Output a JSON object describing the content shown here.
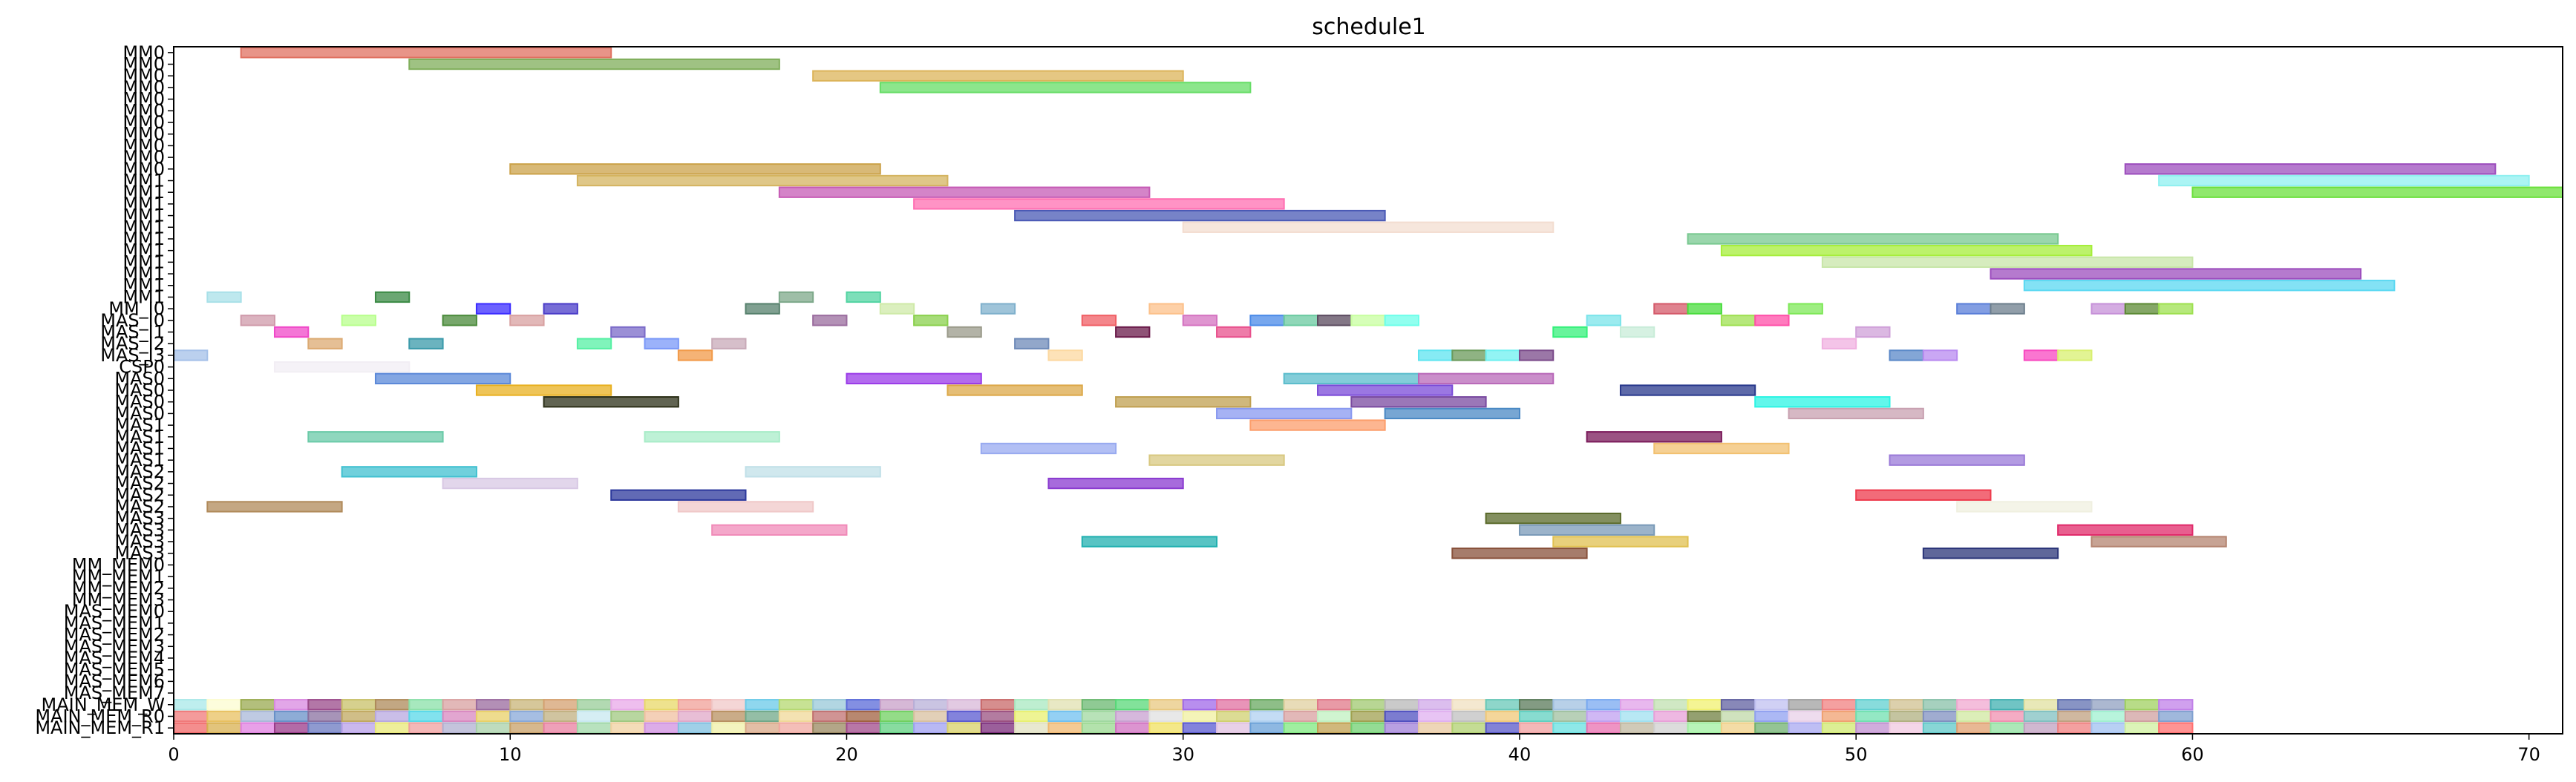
{
  "chart_data": {
    "type": "gantt",
    "title": "schedule1",
    "xlabel": "",
    "ylabel": "",
    "xlim": [
      0,
      71
    ],
    "x_ticks": [
      0,
      10,
      20,
      30,
      40,
      50,
      60,
      70
    ],
    "grid": false,
    "lanes": [
      "MM0",
      "MM0",
      "MM0",
      "MM0",
      "MM0",
      "MM0",
      "MM0",
      "MM0",
      "MM0",
      "MM0",
      "MM0",
      "MM1",
      "MM1",
      "MM1",
      "MM1",
      "MM1",
      "MM1",
      "MM1",
      "MM1",
      "MM1",
      "MM1",
      "MM1",
      "MM_I0",
      "MAS_I0",
      "MAS_I1",
      "MAS_I2",
      "MAS_I3",
      "CSP0",
      "MAS0",
      "MAS0",
      "MAS0",
      "MAS0",
      "MAS1",
      "MAS1",
      "MAS1",
      "MAS1",
      "MAS2",
      "MAS2",
      "MAS2",
      "MAS2",
      "MAS3",
      "MAS3",
      "MAS3",
      "MAS3",
      "MM_MEM0",
      "MM_MEM1",
      "MM_MEM2",
      "MM_MEM3",
      "MAS_MEM0",
      "MAS_MEM1",
      "MAS_MEM2",
      "MAS_MEM3",
      "MAS_MEM4",
      "MAS_MEM5",
      "MAS_MEM6",
      "MAS_MEM7",
      "MAIN_MEM_W",
      "MAIN_MEM_R0",
      "MAIN_MEM_R1"
    ],
    "tasks": [
      {
        "lane": 0,
        "start": 2,
        "end": 13,
        "color": "#e07060"
      },
      {
        "lane": 1,
        "start": 7,
        "end": 18,
        "color": "#7fae5a"
      },
      {
        "lane": 2,
        "start": 19,
        "end": 30,
        "color": "#dcb45a"
      },
      {
        "lane": 3,
        "start": 21,
        "end": 32,
        "color": "#66dd66"
      },
      {
        "lane": 10,
        "start": 58,
        "end": 69,
        "color": "#9c4dbd"
      },
      {
        "lane": 10,
        "start": 10,
        "end": 21,
        "color": "#cba24a"
      },
      {
        "lane": 11,
        "start": 59,
        "end": 70,
        "color": "#8ff0f0"
      },
      {
        "lane": 11,
        "start": 12,
        "end": 23,
        "color": "#d4b460"
      },
      {
        "lane": 12,
        "start": 60,
        "end": 71,
        "color": "#6be03c"
      },
      {
        "lane": 12,
        "start": 18,
        "end": 29,
        "color": "#c65bb5"
      },
      {
        "lane": 13,
        "start": 22,
        "end": 33,
        "color": "#ff6fb2"
      },
      {
        "lane": 14,
        "start": 25,
        "end": 36,
        "color": "#4a59b5"
      },
      {
        "lane": 15,
        "start": 30,
        "end": 41,
        "color": "#f3ddd0"
      },
      {
        "lane": 16,
        "start": 45,
        "end": 56,
        "color": "#78c890"
      },
      {
        "lane": 17,
        "start": 46,
        "end": 57,
        "color": "#a6ee3a"
      },
      {
        "lane": 18,
        "start": 49,
        "end": 60,
        "color": "#c8e6a8"
      },
      {
        "lane": 19,
        "start": 54,
        "end": 65,
        "color": "#9c4dbd"
      },
      {
        "lane": 20,
        "start": 55,
        "end": 66,
        "color": "#5ad8f2"
      },
      {
        "lane": 21,
        "start": 1,
        "end": 2,
        "color": "#a8e0e8"
      },
      {
        "lane": 21,
        "start": 6,
        "end": 7,
        "color": "#3a8a44"
      },
      {
        "lane": 21,
        "start": 18,
        "end": 19,
        "color": "#7da88a"
      },
      {
        "lane": 21,
        "start": 20,
        "end": 21,
        "color": "#52d4a2"
      },
      {
        "lane": 22,
        "start": 9,
        "end": 10,
        "color": "#3b2cff"
      },
      {
        "lane": 22,
        "start": 11,
        "end": 12,
        "color": "#4a3cc8"
      },
      {
        "lane": 22,
        "start": 17,
        "end": 18,
        "color": "#56806c"
      },
      {
        "lane": 22,
        "start": 21,
        "end": 22,
        "color": "#cfeaa8"
      },
      {
        "lane": 22,
        "start": 24,
        "end": 25,
        "color": "#7fb0cc"
      },
      {
        "lane": 22,
        "start": 29,
        "end": 30,
        "color": "#fcc08a"
      },
      {
        "lane": 22,
        "start": 44,
        "end": 45,
        "color": "#d45a6a"
      },
      {
        "lane": 22,
        "start": 45,
        "end": 46,
        "color": "#48dc3c"
      },
      {
        "lane": 22,
        "start": 48,
        "end": 49,
        "color": "#7ee858"
      },
      {
        "lane": 22,
        "start": 53,
        "end": 54,
        "color": "#5a7ed8"
      },
      {
        "lane": 22,
        "start": 54,
        "end": 55,
        "color": "#6c7e8c"
      },
      {
        "lane": 22,
        "start": 57,
        "end": 58,
        "color": "#c690d8"
      },
      {
        "lane": 22,
        "start": 58,
        "end": 59,
        "color": "#5c8a34"
      },
      {
        "lane": 22,
        "start": 59,
        "end": 60,
        "color": "#9ee050"
      },
      {
        "lane": 23,
        "start": 2,
        "end": 3,
        "color": "#cf9aaa"
      },
      {
        "lane": 23,
        "start": 5,
        "end": 6,
        "color": "#b8ff8c"
      },
      {
        "lane": 23,
        "start": 8,
        "end": 9,
        "color": "#4a8a3a"
      },
      {
        "lane": 23,
        "start": 10,
        "end": 11,
        "color": "#d8a0a0"
      },
      {
        "lane": 23,
        "start": 19,
        "end": 20,
        "color": "#9a6c9e"
      },
      {
        "lane": 23,
        "start": 22,
        "end": 23,
        "color": "#8ad04c"
      },
      {
        "lane": 23,
        "start": 27,
        "end": 28,
        "color": "#f05e64"
      },
      {
        "lane": 23,
        "start": 30,
        "end": 31,
        "color": "#d472c0"
      },
      {
        "lane": 23,
        "start": 32,
        "end": 33,
        "color": "#4a8ae8"
      },
      {
        "lane": 23,
        "start": 33,
        "end": 34,
        "color": "#6acaa0"
      },
      {
        "lane": 23,
        "start": 34,
        "end": 35,
        "color": "#5a4a5e"
      },
      {
        "lane": 23,
        "start": 35,
        "end": 36,
        "color": "#c8ffa0"
      },
      {
        "lane": 23,
        "start": 36,
        "end": 37,
        "color": "#6cffea"
      },
      {
        "lane": 23,
        "start": 42,
        "end": 43,
        "color": "#7ae4ea"
      },
      {
        "lane": 23,
        "start": 46,
        "end": 47,
        "color": "#9ee050"
      },
      {
        "lane": 23,
        "start": 47,
        "end": 48,
        "color": "#ff4fa8"
      },
      {
        "lane": 24,
        "start": 3,
        "end": 4,
        "color": "#f048c8"
      },
      {
        "lane": 24,
        "start": 13,
        "end": 14,
        "color": "#7a6ac8"
      },
      {
        "lane": 24,
        "start": 23,
        "end": 24,
        "color": "#9a9a8a"
      },
      {
        "lane": 24,
        "start": 28,
        "end": 29,
        "color": "#6a1a4a"
      },
      {
        "lane": 24,
        "start": 31,
        "end": 32,
        "color": "#e8508c"
      },
      {
        "lane": 24,
        "start": 41,
        "end": 42,
        "color": "#34f07a"
      },
      {
        "lane": 24,
        "start": 43,
        "end": 44,
        "color": "#c8ecd8"
      },
      {
        "lane": 24,
        "start": 50,
        "end": 51,
        "color": "#cfa0d8"
      },
      {
        "lane": 25,
        "start": 4,
        "end": 5,
        "color": "#dcaa72"
      },
      {
        "lane": 25,
        "start": 7,
        "end": 8,
        "color": "#3a9aaa"
      },
      {
        "lane": 25,
        "start": 12,
        "end": 13,
        "color": "#56f0a4"
      },
      {
        "lane": 25,
        "start": 14,
        "end": 15,
        "color": "#7a98f8"
      },
      {
        "lane": 25,
        "start": 16,
        "end": 17,
        "color": "#c8aab8"
      },
      {
        "lane": 25,
        "start": 25,
        "end": 26,
        "color": "#6e8ab8"
      },
      {
        "lane": 25,
        "start": 49,
        "end": 50,
        "color": "#f0b0e0"
      },
      {
        "lane": 26,
        "start": 0,
        "end": 1,
        "color": "#a4c0e8"
      },
      {
        "lane": 26,
        "start": 15,
        "end": 16,
        "color": "#f29a48"
      },
      {
        "lane": 26,
        "start": 26,
        "end": 27,
        "color": "#fcd8a0"
      },
      {
        "lane": 26,
        "start": 37,
        "end": 38,
        "color": "#5ee4f0"
      },
      {
        "lane": 26,
        "start": 38,
        "end": 39,
        "color": "#6a9a5a"
      },
      {
        "lane": 26,
        "start": 39,
        "end": 40,
        "color": "#6ef0f0"
      },
      {
        "lane": 26,
        "start": 40,
        "end": 41,
        "color": "#7a4a8a"
      },
      {
        "lane": 26,
        "start": 51,
        "end": 52,
        "color": "#5a88c8"
      },
      {
        "lane": 26,
        "start": 52,
        "end": 53,
        "color": "#b88af0"
      },
      {
        "lane": 26,
        "start": 55,
        "end": 56,
        "color": "#f848c0"
      },
      {
        "lane": 26,
        "start": 56,
        "end": 57,
        "color": "#d8f070"
      },
      {
        "lane": 27,
        "start": 3,
        "end": 7,
        "color": "#f2eef4"
      },
      {
        "lane": 28,
        "start": 6,
        "end": 10,
        "color": "#5a88d8"
      },
      {
        "lane": 28,
        "start": 20,
        "end": 24,
        "color": "#9a3ae8"
      },
      {
        "lane": 28,
        "start": 33,
        "end": 37,
        "color": "#5abccc"
      },
      {
        "lane": 28,
        "start": 37,
        "end": 41,
        "color": "#b868b8"
      },
      {
        "lane": 29,
        "start": 9,
        "end": 13,
        "color": "#e8b020"
      },
      {
        "lane": 29,
        "start": 23,
        "end": 27,
        "color": "#dca848"
      },
      {
        "lane": 29,
        "start": 34,
        "end": 38,
        "color": "#7a4ad8"
      },
      {
        "lane": 29,
        "start": 43,
        "end": 47,
        "color": "#28388c"
      },
      {
        "lane": 30,
        "start": 11,
        "end": 15,
        "color": "#2c3018"
      },
      {
        "lane": 30,
        "start": 28,
        "end": 32,
        "color": "#c0a050"
      },
      {
        "lane": 30,
        "start": 35,
        "end": 39,
        "color": "#7a4aa0"
      },
      {
        "lane": 30,
        "start": 47,
        "end": 51,
        "color": "#2cf4e4"
      },
      {
        "lane": 31,
        "start": 31,
        "end": 35,
        "color": "#8898f0"
      },
      {
        "lane": 31,
        "start": 36,
        "end": 40,
        "color": "#4a88c4"
      },
      {
        "lane": 31,
        "start": 48,
        "end": 52,
        "color": "#c8a0b0"
      },
      {
        "lane": 32,
        "start": 32,
        "end": 36,
        "color": "#fc9e6c"
      },
      {
        "lane": 33,
        "start": 4,
        "end": 8,
        "color": "#6acaa8"
      },
      {
        "lane": 33,
        "start": 14,
        "end": 18,
        "color": "#a8ecc8"
      },
      {
        "lane": 33,
        "start": 42,
        "end": 46,
        "color": "#7a1a5a"
      },
      {
        "lane": 34,
        "start": 24,
        "end": 28,
        "color": "#98aaf0"
      },
      {
        "lane": 34,
        "start": 44,
        "end": 48,
        "color": "#f2c070"
      },
      {
        "lane": 35,
        "start": 29,
        "end": 33,
        "color": "#d8c880"
      },
      {
        "lane": 35,
        "start": 51,
        "end": 55,
        "color": "#9a7ad8"
      },
      {
        "lane": 36,
        "start": 5,
        "end": 9,
        "color": "#40c0d0"
      },
      {
        "lane": 36,
        "start": 17,
        "end": 21,
        "color": "#c0e0e8"
      },
      {
        "lane": 37,
        "start": 8,
        "end": 12,
        "color": "#d8c8e4"
      },
      {
        "lane": 37,
        "start": 26,
        "end": 30,
        "color": "#8a3ad0"
      },
      {
        "lane": 38,
        "start": 13,
        "end": 17,
        "color": "#2c389c"
      },
      {
        "lane": 38,
        "start": 50,
        "end": 54,
        "color": "#ee3a4c"
      },
      {
        "lane": 39,
        "start": 1,
        "end": 5,
        "color": "#b08a5a"
      },
      {
        "lane": 39,
        "start": 15,
        "end": 19,
        "color": "#f0c8c8"
      },
      {
        "lane": 39,
        "start": 53,
        "end": 57,
        "color": "#f0f0e0"
      },
      {
        "lane": 40,
        "start": 39,
        "end": 43,
        "color": "#5a6a2a"
      },
      {
        "lane": 41,
        "start": 16,
        "end": 20,
        "color": "#f08ab8"
      },
      {
        "lane": 41,
        "start": 40,
        "end": 44,
        "color": "#7a9ab8"
      },
      {
        "lane": 41,
        "start": 56,
        "end": 60,
        "color": "#e02a6a"
      },
      {
        "lane": 42,
        "start": 27,
        "end": 31,
        "color": "#20b0b0"
      },
      {
        "lane": 42,
        "start": 41,
        "end": 45,
        "color": "#e0c050"
      },
      {
        "lane": 42,
        "start": 57,
        "end": 61,
        "color": "#b48470"
      },
      {
        "lane": 43,
        "start": 38,
        "end": 42,
        "color": "#88503a"
      },
      {
        "lane": 43,
        "start": 52,
        "end": 56,
        "color": "#2a3478"
      }
    ],
    "mem_w_colors": [
      "#a8e8e8",
      "#fcfcd0",
      "#9aaa50",
      "#d888e0",
      "#9a4a8a",
      "#c8c068",
      "#ae8a5a",
      "#8ae0a8",
      "#d8a0a0",
      "#9a6a9e",
      "#c8b478",
      "#d4a070",
      "#98cc98",
      "#e8a8e8",
      "#e8d868",
      "#f0a098",
      "#f0c8c8",
      "#6acae8",
      "#b4d870",
      "#98c8d8",
      "#5a6ad8",
      "#c8a0c8",
      "#b8b0d8",
      "#d8b8d8",
      "#c86868",
      "#a8e8c0",
      "#e0e0b0",
      "#6ab870",
      "#58d878",
      "#e8c880",
      "#a068e8",
      "#e070a0",
      "#68a860",
      "#e0d0a0",
      "#e07888",
      "#a0c870",
      "#b8b8b8",
      "#d0a8e8",
      "#f0e0c0",
      "#68c8b8",
      "#5a7a5a",
      "#a0c0e0",
      "#78a8f0",
      "#e0a0e8",
      "#c0e0b0",
      "#f0f070",
      "#6060a0",
      "#c0c0f0",
      "#a0a0a0",
      "#f08080",
      "#60d0d0",
      "#d0c090",
      "#88c0a8",
      "#f0a8d0",
      "#40b0b0",
      "#e0e0a0",
      "#6070b0",
      "#90a0c0",
      "#a0d060",
      "#c080e8"
    ],
    "mem_r0_colors": [
      "#f07a7a",
      "#e8c060",
      "#aab8d8",
      "#6890c8",
      "#8a70a0",
      "#c0a860",
      "#b8a8e0",
      "#58d8e8",
      "#d888c0",
      "#e8d068",
      "#88a8d8",
      "#c0b080",
      "#c8e8f0",
      "#a0c880",
      "#f0c0a0",
      "#e0a8c8",
      "#b89060",
      "#70a888",
      "#f0d898",
      "#c07070",
      "#a06040",
      "#70d060",
      "#d8c0a0",
      "#5a5ad0",
      "#9a5080",
      "#e8f070",
      "#70c0f0",
      "#a0d8a0",
      "#c8a0d0",
      "#e0e0e0",
      "#f0f0a0",
      "#d0d070",
      "#b0d0f0",
      "#d8a0a0",
      "#c0f0c0",
      "#a0a050",
      "#5050c0",
      "#e0b0f0",
      "#c0c0c0",
      "#f0c878",
      "#60d0c0",
      "#a0c0a0",
      "#c0a0f0",
      "#a0e0f0",
      "#e8a0d8",
      "#708040",
      "#c0d8a8",
      "#90a0f0",
      "#e8d0e8",
      "#f0a070",
      "#70e0b0",
      "#b0b080",
      "#8090c0",
      "#d0e8a0",
      "#f090b0",
      "#80c0c0",
      "#c0a080",
      "#a0f0d0",
      "#d0a0a0",
      "#80a0d0"
    ],
    "mem_r1_colors": [
      "#f06868",
      "#d8b050",
      "#e080e0",
      "#9a3a8a",
      "#6a78c0",
      "#b8a0e8",
      "#e8e878",
      "#f0a0a0",
      "#b0b0d0",
      "#a8d0a8",
      "#c8a068",
      "#e880a0",
      "#a0d8a8",
      "#f0d0a0",
      "#d090e0",
      "#80c0e0",
      "#f0f0a8",
      "#d8a888",
      "#f0a8a0",
      "#9a8860",
      "#a04a8a",
      "#60d080",
      "#a0a0f0",
      "#d8d068",
      "#7a2a7a",
      "#e0e0c0",
      "#f0b870",
      "#9ad890",
      "#d070c0",
      "#f0e060",
      "#5a5ad0",
      "#e0c0e0",
      "#68a0d8",
      "#80e880",
      "#c0a050",
      "#70d070",
      "#a080d8",
      "#e8c8a0",
      "#b0d070",
      "#5858c8",
      "#f0a0a0",
      "#68e0e0",
      "#e870b0",
      "#c0b8a0",
      "#d0d0d0",
      "#a0f0a0",
      "#f0d088",
      "#70b070",
      "#a8a8f0",
      "#d0e870",
      "#c090d0",
      "#f0c8e0",
      "#60c8c8",
      "#e0a070",
      "#90e0a0",
      "#c0a0c0",
      "#f08080",
      "#a0c0f0",
      "#d0f0a0",
      "#ff7070"
    ]
  }
}
